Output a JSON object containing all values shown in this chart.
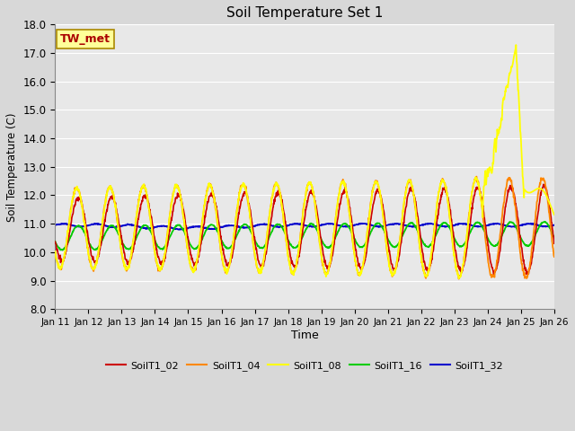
{
  "title": "Soil Temperature Set 1",
  "xlabel": "Time",
  "ylabel": "Soil Temperature (C)",
  "ylim": [
    8.0,
    18.0
  ],
  "yticks": [
    8.0,
    9.0,
    10.0,
    11.0,
    12.0,
    13.0,
    14.0,
    15.0,
    16.0,
    17.0,
    18.0
  ],
  "n_days": 15,
  "annotation_text": "TW_met",
  "annotation_color": "#aa0000",
  "annotation_bg": "#ffff99",
  "annotation_border": "#aa8800",
  "fig_bg": "#d8d8d8",
  "plot_bg": "#e8e8e8",
  "grid_color": "#ffffff",
  "xtick_labels": [
    "Jan 11",
    "Jan 12",
    "Jan 13",
    "Jan 14",
    "Jan 15",
    "Jan 16",
    "Jan 17",
    "Jan 18",
    "Jan 19",
    "Jan 20",
    "Jan 21",
    "Jan 22",
    "Jan 23",
    "Jan 24",
    "Jan 25",
    "Jan 26"
  ],
  "legend_colors": [
    "#cc0000",
    "#ff8800",
    "#ffff00",
    "#00cc00",
    "#0000cc"
  ],
  "legend_labels": [
    "SoilT1_02",
    "SoilT1_04",
    "SoilT1_08",
    "SoilT1_16",
    "SoilT1_32"
  ]
}
